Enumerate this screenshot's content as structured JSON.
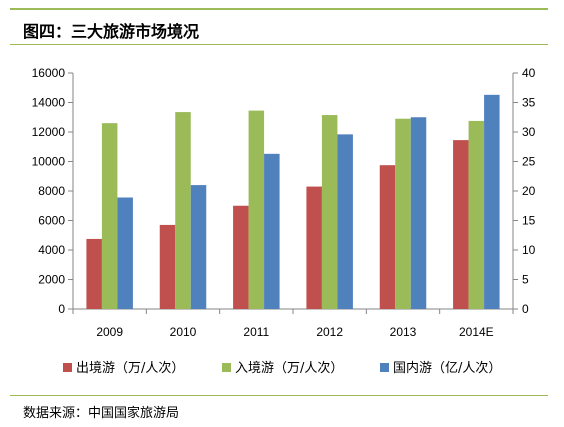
{
  "header": {
    "title": "图四：三大旅游市场境况"
  },
  "footer": {
    "source": "数据来源：中国国家旅游局"
  },
  "colors": {
    "accent_rule": "#9bbb59"
  },
  "chart_data": {
    "type": "bar",
    "categories": [
      "2009",
      "2010",
      "2011",
      "2012",
      "2013",
      "2014E"
    ],
    "series": [
      {
        "name": "出境游（万/人次）",
        "color": "#c0504d",
        "axis": "left",
        "values": [
          4750,
          5700,
          7000,
          8300,
          9750,
          11450
        ]
      },
      {
        "name": "入境游（万/人次）",
        "color": "#9bbb59",
        "axis": "left",
        "values": [
          12600,
          13350,
          13450,
          13150,
          12900,
          12750
        ]
      },
      {
        "name": "国内游（亿/人次）",
        "color": "#4f81bd",
        "axis": "right",
        "values": [
          18.9,
          21.0,
          26.3,
          29.6,
          32.5,
          36.3
        ]
      }
    ],
    "y_left": {
      "min": 0,
      "max": 16000,
      "step": 2000
    },
    "y_right": {
      "min": 0,
      "max": 40,
      "step": 5
    },
    "legend_position": "bottom",
    "grid": false
  }
}
